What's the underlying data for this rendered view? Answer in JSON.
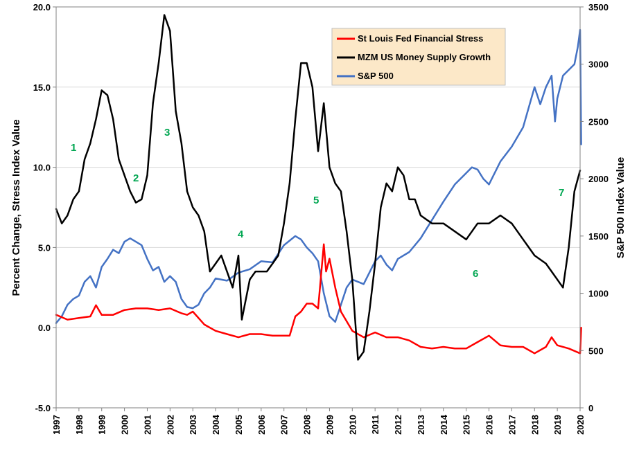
{
  "chart_data": {
    "type": "line",
    "title": "",
    "xlabel": "",
    "ylabel_left": "Percent Change, Stress Index Value",
    "ylabel_right": "S&P 500 Index Value",
    "x_ticks": [
      "1997",
      "1998",
      "1999",
      "2000",
      "2001",
      "2002",
      "2003",
      "2004",
      "2005",
      "2006",
      "2007",
      "2008",
      "2009",
      "2010",
      "2011",
      "2012",
      "2013",
      "2014",
      "2015",
      "2016",
      "2017",
      "2018",
      "2019",
      "2020"
    ],
    "xlim": [
      1997,
      2020
    ],
    "ylim_left": [
      -5,
      20
    ],
    "y_ticks_left": [
      "-5.0",
      "0.0",
      "5.0",
      "10.0",
      "15.0",
      "20.0"
    ],
    "ylim_right": [
      0,
      3500
    ],
    "y_ticks_right": [
      "0",
      "500",
      "1000",
      "1500",
      "2000",
      "2500",
      "3000",
      "3500"
    ],
    "grid": "horizontal",
    "legend_position": "top-right",
    "series": [
      {
        "name": "St Louis Fed Financial Stress",
        "color": "#ff0000",
        "axis": "left",
        "x": [
          1997,
          1997.5,
          1998,
          1998.5,
          1998.75,
          1999,
          1999.5,
          2000,
          2000.5,
          2001,
          2001.5,
          2002,
          2002.5,
          2002.75,
          2003,
          2003.5,
          2004,
          2004.5,
          2005,
          2005.5,
          2006,
          2006.5,
          2007,
          2007.25,
          2007.5,
          2007.75,
          2008,
          2008.25,
          2008.5,
          2008.75,
          2008.85,
          2009,
          2009.25,
          2009.5,
          2010,
          2010.5,
          2011,
          2011.5,
          2012,
          2012.5,
          2013,
          2013.5,
          2014,
          2014.5,
          2015,
          2015.5,
          2016,
          2016.5,
          2017,
          2017.5,
          2018,
          2018.5,
          2018.75,
          2019,
          2019.5,
          2020,
          2020.05
        ],
        "values": [
          0.8,
          0.5,
          0.6,
          0.7,
          1.4,
          0.8,
          0.8,
          1.1,
          1.2,
          1.2,
          1.1,
          1.2,
          0.9,
          0.8,
          1.0,
          0.2,
          -0.2,
          -0.4,
          -0.6,
          -0.4,
          -0.4,
          -0.5,
          -0.5,
          -0.5,
          0.7,
          1.0,
          1.5,
          1.5,
          1.2,
          5.2,
          3.5,
          4.3,
          2.5,
          1.0,
          -0.2,
          -0.6,
          -0.3,
          -0.6,
          -0.6,
          -0.8,
          -1.2,
          -1.3,
          -1.2,
          -1.3,
          -1.3,
          -0.9,
          -0.5,
          -1.1,
          -1.2,
          -1.2,
          -1.6,
          -1.2,
          -0.6,
          -1.1,
          -1.3,
          -1.6,
          0.0
        ]
      },
      {
        "name": "MZM US Money Supply Growth",
        "color": "#000000",
        "axis": "left",
        "x": [
          1997,
          1997.25,
          1997.5,
          1997.75,
          1998,
          1998.25,
          1998.5,
          1998.75,
          1999,
          1999.25,
          1999.5,
          1999.75,
          2000,
          2000.25,
          2000.5,
          2000.75,
          2001,
          2001.25,
          2001.5,
          2001.75,
          2002,
          2002.25,
          2002.5,
          2002.75,
          2003,
          2003.25,
          2003.5,
          2003.75,
          2004,
          2004.25,
          2004.5,
          2004.75,
          2005,
          2005.15,
          2005.5,
          2005.75,
          2006,
          2006.25,
          2006.5,
          2006.75,
          2007,
          2007.25,
          2007.5,
          2007.75,
          2008,
          2008.25,
          2008.5,
          2008.75,
          2009,
          2009.25,
          2009.5,
          2009.75,
          2010,
          2010.25,
          2010.5,
          2010.75,
          2011,
          2011.25,
          2011.5,
          2011.75,
          2012,
          2012.25,
          2012.5,
          2012.75,
          2013,
          2013.5,
          2014,
          2014.5,
          2015,
          2015.5,
          2016,
          2016.5,
          2017,
          2017.5,
          2018,
          2018.5,
          2018.75,
          2019,
          2019.25,
          2019.5,
          2019.75,
          2020
        ],
        "values": [
          7.4,
          6.5,
          7.0,
          8.0,
          8.5,
          10.5,
          11.5,
          13.0,
          14.8,
          14.5,
          13.0,
          10.5,
          9.5,
          8.5,
          7.8,
          8.0,
          9.5,
          14.0,
          16.5,
          19.5,
          18.5,
          13.5,
          11.5,
          8.5,
          7.5,
          7.0,
          6.0,
          3.5,
          4.0,
          4.5,
          3.5,
          2.5,
          4.5,
          0.5,
          3.0,
          3.5,
          3.5,
          3.5,
          4.0,
          4.5,
          6.5,
          9.0,
          13.0,
          16.5,
          16.5,
          15.0,
          11.0,
          14.0,
          10.0,
          9.0,
          8.5,
          6.0,
          3.0,
          -2.0,
          -1.5,
          1.0,
          4.0,
          7.5,
          9.0,
          8.5,
          10.0,
          9.5,
          8.0,
          8.0,
          7.0,
          6.5,
          6.5,
          6.0,
          5.5,
          6.5,
          6.5,
          7.0,
          6.5,
          5.5,
          4.5,
          4.0,
          3.5,
          3.0,
          2.5,
          5.0,
          8.5,
          9.8
        ]
      },
      {
        "name": "S&P 500",
        "color": "#4472c4",
        "axis": "right",
        "x": [
          1997,
          1997.25,
          1997.5,
          1997.75,
          1998,
          1998.25,
          1998.5,
          1998.75,
          1999,
          1999.25,
          1999.5,
          1999.75,
          2000,
          2000.25,
          2000.5,
          2000.75,
          2001,
          2001.25,
          2001.5,
          2001.75,
          2002,
          2002.25,
          2002.5,
          2002.75,
          2003,
          2003.25,
          2003.5,
          2003.75,
          2004,
          2004.5,
          2005,
          2005.5,
          2006,
          2006.5,
          2007,
          2007.5,
          2007.75,
          2008,
          2008.25,
          2008.5,
          2008.75,
          2009,
          2009.25,
          2009.5,
          2009.75,
          2010,
          2010.5,
          2011,
          2011.25,
          2011.5,
          2011.75,
          2012,
          2012.5,
          2013,
          2013.5,
          2014,
          2014.5,
          2015,
          2015.25,
          2015.5,
          2015.75,
          2016,
          2016.5,
          2017,
          2017.5,
          2018,
          2018.25,
          2018.5,
          2018.75,
          2018.9,
          2019,
          2019.25,
          2019.5,
          2019.75,
          2019.9,
          2020,
          2020.05
        ],
        "values": [
          740,
          800,
          900,
          950,
          980,
          1100,
          1150,
          1050,
          1230,
          1300,
          1380,
          1350,
          1450,
          1480,
          1450,
          1420,
          1300,
          1200,
          1230,
          1100,
          1150,
          1100,
          950,
          880,
          870,
          900,
          1000,
          1050,
          1130,
          1110,
          1180,
          1210,
          1280,
          1270,
          1420,
          1500,
          1470,
          1400,
          1350,
          1280,
          1000,
          800,
          750,
          900,
          1050,
          1120,
          1080,
          1280,
          1330,
          1250,
          1200,
          1300,
          1360,
          1480,
          1640,
          1800,
          1950,
          2050,
          2100,
          2080,
          2000,
          1950,
          2150,
          2280,
          2450,
          2800,
          2650,
          2800,
          2900,
          2500,
          2700,
          2900,
          2950,
          3000,
          3150,
          3300,
          2300
        ]
      }
    ],
    "annotations": [
      "1",
      "2",
      "3",
      "4",
      "5",
      "6",
      "7"
    ]
  }
}
